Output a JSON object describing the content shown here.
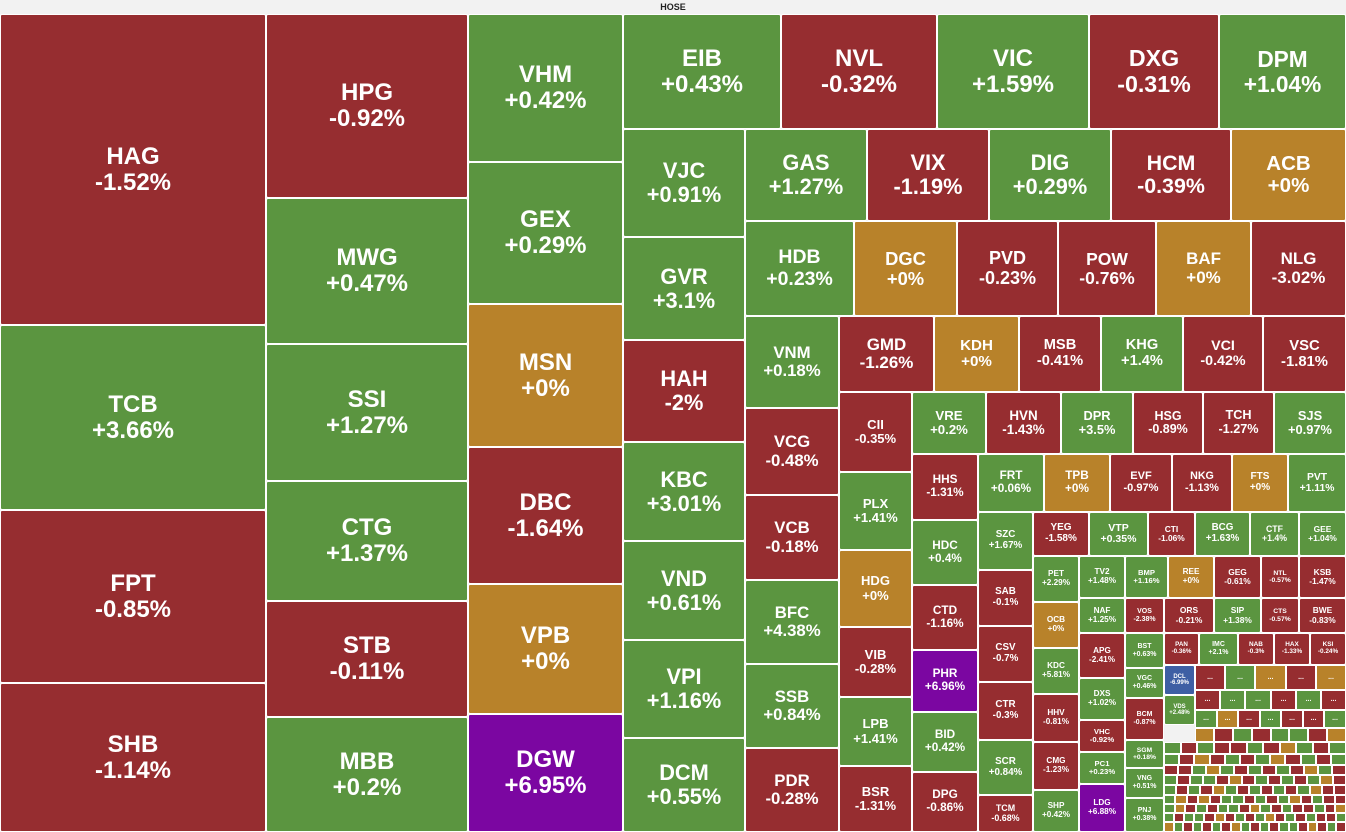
{
  "title": "HOSE",
  "colors": {
    "up": "#5b9540",
    "down": "#962d30",
    "flat": "#b8822a",
    "ceiling": "#7b06a1",
    "floor": "#3e5fa4"
  },
  "chart_data": {
    "type": "treemap",
    "title": "HOSE",
    "items": [
      {
        "symbol": "HAG",
        "change_label": "-1.52%",
        "change": -1.52,
        "status": "down"
      },
      {
        "symbol": "TCB",
        "change_label": "+3.66%",
        "change": 3.66,
        "status": "up"
      },
      {
        "symbol": "FPT",
        "change_label": "-0.85%",
        "change": -0.85,
        "status": "down"
      },
      {
        "symbol": "SHB",
        "change_label": "-1.14%",
        "change": -1.14,
        "status": "down"
      },
      {
        "symbol": "HPG",
        "change_label": "-0.92%",
        "change": -0.92,
        "status": "down"
      },
      {
        "symbol": "MWG",
        "change_label": "+0.47%",
        "change": 0.47,
        "status": "up"
      },
      {
        "symbol": "SSI",
        "change_label": "+1.27%",
        "change": 1.27,
        "status": "up"
      },
      {
        "symbol": "CTG",
        "change_label": "+1.37%",
        "change": 1.37,
        "status": "up"
      },
      {
        "symbol": "STB",
        "change_label": "-0.11%",
        "change": -0.11,
        "status": "down"
      },
      {
        "symbol": "MBB",
        "change_label": "+0.2%",
        "change": 0.2,
        "status": "up"
      },
      {
        "symbol": "VHM",
        "change_label": "+0.42%",
        "change": 0.42,
        "status": "up"
      },
      {
        "symbol": "GEX",
        "change_label": "+0.29%",
        "change": 0.29,
        "status": "up"
      },
      {
        "symbol": "MSN",
        "change_label": "+0%",
        "change": 0,
        "status": "flat"
      },
      {
        "symbol": "DBC",
        "change_label": "-1.64%",
        "change": -1.64,
        "status": "down"
      },
      {
        "symbol": "VPB",
        "change_label": "+0%",
        "change": 0,
        "status": "flat"
      },
      {
        "symbol": "DGW",
        "change_label": "+6.95%",
        "change": 6.95,
        "status": "ceiling"
      },
      {
        "symbol": "EIB",
        "change_label": "+0.43%",
        "change": 0.43,
        "status": "up"
      },
      {
        "symbol": "VJC",
        "change_label": "+0.91%",
        "change": 0.91,
        "status": "up"
      },
      {
        "symbol": "GVR",
        "change_label": "+3.1%",
        "change": 3.1,
        "status": "up"
      },
      {
        "symbol": "HAH",
        "change_label": "-2%",
        "change": -2,
        "status": "down"
      },
      {
        "symbol": "KBC",
        "change_label": "+3.01%",
        "change": 3.01,
        "status": "up"
      },
      {
        "symbol": "VND",
        "change_label": "+0.61%",
        "change": 0.61,
        "status": "up"
      },
      {
        "symbol": "VPI",
        "change_label": "+1.16%",
        "change": 1.16,
        "status": "up"
      },
      {
        "symbol": "DCM",
        "change_label": "+0.55%",
        "change": 0.55,
        "status": "up"
      },
      {
        "symbol": "NVL",
        "change_label": "-0.32%",
        "change": -0.32,
        "status": "down"
      },
      {
        "symbol": "VIC",
        "change_label": "+1.59%",
        "change": 1.59,
        "status": "up"
      },
      {
        "symbol": "DXG",
        "change_label": "-0.31%",
        "change": -0.31,
        "status": "down"
      },
      {
        "symbol": "DPM",
        "change_label": "+1.04%",
        "change": 1.04,
        "status": "up"
      },
      {
        "symbol": "GAS",
        "change_label": "+1.27%",
        "change": 1.27,
        "status": "up"
      },
      {
        "symbol": "VIX",
        "change_label": "-1.19%",
        "change": -1.19,
        "status": "down"
      },
      {
        "symbol": "DIG",
        "change_label": "+0.29%",
        "change": 0.29,
        "status": "up"
      },
      {
        "symbol": "HCM",
        "change_label": "-0.39%",
        "change": -0.39,
        "status": "down"
      },
      {
        "symbol": "ACB",
        "change_label": "+0%",
        "change": 0,
        "status": "flat"
      },
      {
        "symbol": "HDB",
        "change_label": "+0.23%",
        "change": 0.23,
        "status": "up"
      },
      {
        "symbol": "DGC",
        "change_label": "+0%",
        "change": 0,
        "status": "flat"
      },
      {
        "symbol": "PVD",
        "change_label": "-0.23%",
        "change": -0.23,
        "status": "down"
      },
      {
        "symbol": "POW",
        "change_label": "-0.76%",
        "change": -0.76,
        "status": "down"
      },
      {
        "symbol": "BAF",
        "change_label": "+0%",
        "change": 0,
        "status": "flat"
      },
      {
        "symbol": "NLG",
        "change_label": "-3.02%",
        "change": -3.02,
        "status": "down"
      },
      {
        "symbol": "VNM",
        "change_label": "+0.18%",
        "change": 0.18,
        "status": "up"
      },
      {
        "symbol": "VCG",
        "change_label": "-0.48%",
        "change": -0.48,
        "status": "down"
      },
      {
        "symbol": "VCB",
        "change_label": "-0.18%",
        "change": -0.18,
        "status": "down"
      },
      {
        "symbol": "BFC",
        "change_label": "+4.38%",
        "change": 4.38,
        "status": "up"
      },
      {
        "symbol": "SSB",
        "change_label": "+0.84%",
        "change": 0.84,
        "status": "up"
      },
      {
        "symbol": "PDR",
        "change_label": "-0.28%",
        "change": -0.28,
        "status": "down"
      },
      {
        "symbol": "GMD",
        "change_label": "-1.26%",
        "change": -1.26,
        "status": "down"
      },
      {
        "symbol": "KDH",
        "change_label": "+0%",
        "change": 0,
        "status": "flat"
      },
      {
        "symbol": "MSB",
        "change_label": "-0.41%",
        "change": -0.41,
        "status": "down"
      },
      {
        "symbol": "KHG",
        "change_label": "+1.4%",
        "change": 1.4,
        "status": "up"
      },
      {
        "symbol": "VCI",
        "change_label": "-0.42%",
        "change": -0.42,
        "status": "down"
      },
      {
        "symbol": "VSC",
        "change_label": "-1.81%",
        "change": -1.81,
        "status": "down"
      },
      {
        "symbol": "CII",
        "change_label": "-0.35%",
        "change": -0.35,
        "status": "down"
      },
      {
        "symbol": "VRE",
        "change_label": "+0.2%",
        "change": 0.2,
        "status": "up"
      },
      {
        "symbol": "HVN",
        "change_label": "-1.43%",
        "change": -1.43,
        "status": "down"
      },
      {
        "symbol": "DPR",
        "change_label": "+3.5%",
        "change": 3.5,
        "status": "up"
      },
      {
        "symbol": "HSG",
        "change_label": "-0.89%",
        "change": -0.89,
        "status": "down"
      },
      {
        "symbol": "TCH",
        "change_label": "-1.27%",
        "change": -1.27,
        "status": "down"
      },
      {
        "symbol": "SJS",
        "change_label": "+0.97%",
        "change": 0.97,
        "status": "up"
      },
      {
        "symbol": "PLX",
        "change_label": "+1.41%",
        "change": 1.41,
        "status": "up"
      },
      {
        "symbol": "HHS",
        "change_label": "-1.31%",
        "change": -1.31,
        "status": "down"
      },
      {
        "symbol": "FRT",
        "change_label": "+0.06%",
        "change": 0.06,
        "status": "up"
      },
      {
        "symbol": "TPB",
        "change_label": "+0%",
        "change": 0,
        "status": "flat"
      },
      {
        "symbol": "EVF",
        "change_label": "-0.97%",
        "change": -0.97,
        "status": "down"
      },
      {
        "symbol": "NKG",
        "change_label": "-1.13%",
        "change": -1.13,
        "status": "down"
      },
      {
        "symbol": "FTS",
        "change_label": "+0%",
        "change": 0,
        "status": "flat"
      },
      {
        "symbol": "PVT",
        "change_label": "+1.11%",
        "change": 1.11,
        "status": "up"
      },
      {
        "symbol": "HDC",
        "change_label": "+0.4%",
        "change": 0.4,
        "status": "up"
      },
      {
        "symbol": "SZC",
        "change_label": "+1.67%",
        "change": 1.67,
        "status": "up"
      },
      {
        "symbol": "YEG",
        "change_label": "-1.58%",
        "change": -1.58,
        "status": "down"
      },
      {
        "symbol": "VTP",
        "change_label": "+0.35%",
        "change": 0.35,
        "status": "up"
      },
      {
        "symbol": "CTI",
        "change_label": "-1.06%",
        "change": -1.06,
        "status": "down"
      },
      {
        "symbol": "BCG",
        "change_label": "+1.63%",
        "change": 1.63,
        "status": "up"
      },
      {
        "symbol": "CTF",
        "change_label": "+1.4%",
        "change": 1.4,
        "status": "up"
      },
      {
        "symbol": "GEE",
        "change_label": "+1.04%",
        "change": 1.04,
        "status": "up"
      },
      {
        "symbol": "HDG",
        "change_label": "+0%",
        "change": 0,
        "status": "flat"
      },
      {
        "symbol": "PET",
        "change_label": "+2.29%",
        "change": 2.29,
        "status": "up"
      },
      {
        "symbol": "TV2",
        "change_label": "+1.48%",
        "change": 1.48,
        "status": "up"
      },
      {
        "symbol": "BMP",
        "change_label": "+1.16%",
        "change": 1.16,
        "status": "up"
      },
      {
        "symbol": "REE",
        "change_label": "+0%",
        "change": 0,
        "status": "flat"
      },
      {
        "symbol": "GEG",
        "change_label": "-0.61%",
        "change": -0.61,
        "status": "down"
      },
      {
        "symbol": "NTL",
        "change_label": "-0.57%",
        "change": -0.57,
        "status": "down"
      },
      {
        "symbol": "KSB",
        "change_label": "-1.47%",
        "change": -1.47,
        "status": "down"
      },
      {
        "symbol": "SAB",
        "change_label": "-0.1%",
        "change": -0.1,
        "status": "down"
      },
      {
        "symbol": "CTD",
        "change_label": "-1.16%",
        "change": -1.16,
        "status": "down"
      },
      {
        "symbol": "VIB",
        "change_label": "-0.28%",
        "change": -0.28,
        "status": "down"
      },
      {
        "symbol": "OCB",
        "change_label": "+0%",
        "change": 0,
        "status": "flat"
      },
      {
        "symbol": "NAF",
        "change_label": "+1.25%",
        "change": 1.25,
        "status": "up"
      },
      {
        "symbol": "VOS",
        "change_label": "-2.38%",
        "change": -2.38,
        "status": "down"
      },
      {
        "symbol": "ORS",
        "change_label": "-0.21%",
        "change": -0.21,
        "status": "down"
      },
      {
        "symbol": "SIP",
        "change_label": "+1.38%",
        "change": 1.38,
        "status": "up"
      },
      {
        "symbol": "CTS",
        "change_label": "-0.57%",
        "change": -0.57,
        "status": "down"
      },
      {
        "symbol": "BWE",
        "change_label": "-0.83%",
        "change": -0.83,
        "status": "down"
      },
      {
        "symbol": "CSV",
        "change_label": "-0.7%",
        "change": -0.7,
        "status": "down"
      },
      {
        "symbol": "PHR",
        "change_label": "+6.96%",
        "change": 6.96,
        "status": "ceiling"
      },
      {
        "symbol": "APG",
        "change_label": "-2.41%",
        "change": -2.41,
        "status": "down"
      },
      {
        "symbol": "BST",
        "change_label": "+0.63%",
        "change": 0.63,
        "status": "up"
      },
      {
        "symbol": "PAN",
        "change_label": "-0.36%",
        "change": -0.36,
        "status": "down"
      },
      {
        "symbol": "IMC",
        "change_label": "+2.1%",
        "change": 2.1,
        "status": "up"
      },
      {
        "symbol": "NAB",
        "change_label": "-0.3%",
        "change": -0.3,
        "status": "down"
      },
      {
        "symbol": "HAX",
        "change_label": "-1.33%",
        "change": -1.33,
        "status": "down"
      },
      {
        "symbol": "KSI",
        "change_label": "-0.24%",
        "change": -0.24,
        "status": "down"
      },
      {
        "symbol": "KDC",
        "change_label": "+5.81%",
        "change": 5.81,
        "status": "up"
      },
      {
        "symbol": "VGC",
        "change_label": "+0.46%",
        "change": 0.46,
        "status": "up"
      },
      {
        "symbol": "DCL",
        "change_label": "-6.99%",
        "change": -6.99,
        "status": "floor"
      },
      {
        "symbol": "CTR",
        "change_label": "-0.3%",
        "change": -0.3,
        "status": "down"
      },
      {
        "symbol": "LPB",
        "change_label": "+1.41%",
        "change": 1.41,
        "status": "up"
      },
      {
        "symbol": "DXS",
        "change_label": "+1.02%",
        "change": 1.02,
        "status": "up"
      },
      {
        "symbol": "VDS",
        "change_label": "+2.48%",
        "change": 2.48,
        "status": "up"
      },
      {
        "symbol": "HHV",
        "change_label": "-0.81%",
        "change": -0.81,
        "status": "down"
      },
      {
        "symbol": "BID",
        "change_label": "+0.42%",
        "change": 0.42,
        "status": "up"
      },
      {
        "symbol": "VHC",
        "change_label": "-0.92%",
        "change": -0.92,
        "status": "down"
      },
      {
        "symbol": "BCM",
        "change_label": "-0.87%",
        "change": -0.87,
        "status": "down"
      },
      {
        "symbol": "SCR",
        "change_label": "+0.84%",
        "change": 0.84,
        "status": "up"
      },
      {
        "symbol": "CMG",
        "change_label": "-1.23%",
        "change": -1.23,
        "status": "down"
      },
      {
        "symbol": "SGM",
        "change_label": "+0.18%",
        "change": 0.18,
        "status": "up"
      },
      {
        "symbol": "PC1",
        "change_label": "+0.23%",
        "change": 0.23,
        "status": "up"
      },
      {
        "symbol": "VNG",
        "change_label": "+0.51%",
        "change": 0.51,
        "status": "up"
      },
      {
        "symbol": "BSR",
        "change_label": "-1.31%",
        "change": -1.31,
        "status": "down"
      },
      {
        "symbol": "DPG",
        "change_label": "-0.86%",
        "change": -0.86,
        "status": "down"
      },
      {
        "symbol": "TCM",
        "change_label": "-0.68%",
        "change": -0.68,
        "status": "down"
      },
      {
        "symbol": "SHP",
        "change_label": "+0.42%",
        "change": 0.42,
        "status": "up"
      },
      {
        "symbol": "LDG",
        "change_label": "+6.88%",
        "change": 6.88,
        "status": "ceiling"
      },
      {
        "symbol": "PNJ",
        "change_label": "+0.38%",
        "change": 0.38,
        "status": "up"
      }
    ],
    "more_label": "...",
    "small_tiles": [
      "down",
      "up",
      "flat",
      "down",
      "flat",
      "down",
      "up",
      "up",
      "down",
      "up",
      "down",
      "up",
      "flat",
      "down",
      "up",
      "down",
      "down",
      "up",
      "flat",
      "down",
      "up",
      "down",
      "up",
      "up",
      "down",
      "flat",
      "up",
      "down",
      "up",
      "down",
      "down",
      "up",
      "down",
      "flat",
      "up",
      "down",
      "up",
      "up",
      "down",
      "flat",
      "down",
      "up",
      "down",
      "up",
      "flat",
      "down",
      "up",
      "down",
      "up",
      "down",
      "down",
      "up",
      "flat",
      "up",
      "down",
      "up",
      "down",
      "up",
      "down",
      "flat",
      "up",
      "down",
      "up",
      "down",
      "up",
      "up",
      "down",
      "flat",
      "down",
      "up",
      "down",
      "up",
      "down",
      "up",
      "flat",
      "down",
      "up",
      "down",
      "up",
      "down",
      "flat",
      "up",
      "down",
      "up",
      "down",
      "up",
      "down",
      "up",
      "flat",
      "down"
    ]
  }
}
